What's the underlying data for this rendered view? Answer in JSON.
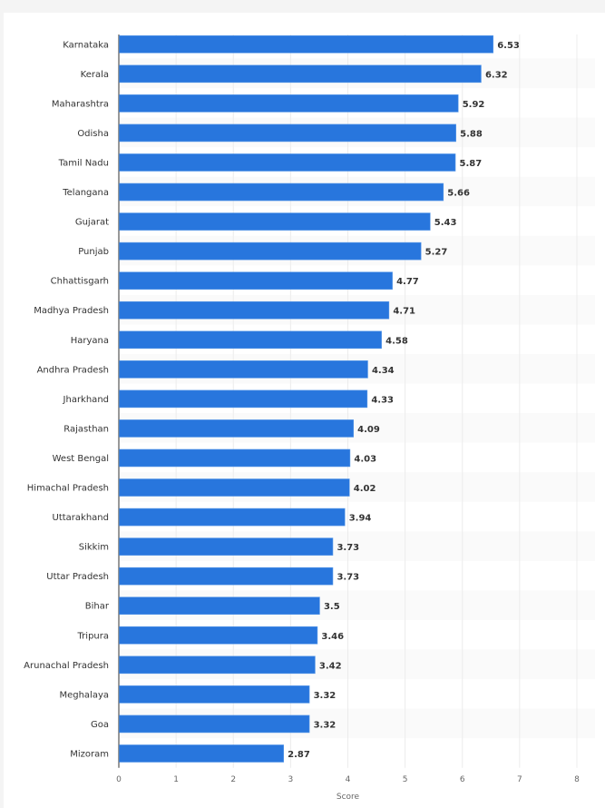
{
  "chart_data": {
    "type": "bar",
    "orientation": "horizontal",
    "categories": [
      "Karnataka",
      "Kerala",
      "Maharashtra",
      "Odisha",
      "Tamil Nadu",
      "Telangana",
      "Gujarat",
      "Punjab",
      "Chhattisgarh",
      "Madhya Pradesh",
      "Haryana",
      "Andhra Pradesh",
      "Jharkhand",
      "Rajasthan",
      "West Bengal",
      "Himachal Pradesh",
      "Uttarakhand",
      "Sikkim",
      "Uttar Pradesh",
      "Bihar",
      "Tripura",
      "Arunachal Pradesh",
      "Meghalaya",
      "Goa",
      "Mizoram"
    ],
    "values": [
      6.53,
      6.32,
      5.92,
      5.88,
      5.87,
      5.66,
      5.43,
      5.27,
      4.77,
      4.71,
      4.58,
      4.34,
      4.33,
      4.09,
      4.03,
      4.02,
      3.94,
      3.73,
      3.73,
      3.5,
      3.46,
      3.42,
      3.32,
      3.32,
      2.87
    ],
    "xlabel": "Score",
    "xlim": [
      0,
      8
    ],
    "xticks": [
      "0",
      "1",
      "2",
      "3",
      "4",
      "5",
      "6",
      "7",
      "8"
    ],
    "grid": true,
    "data_labels": true,
    "bar_color": "#2876dd"
  }
}
